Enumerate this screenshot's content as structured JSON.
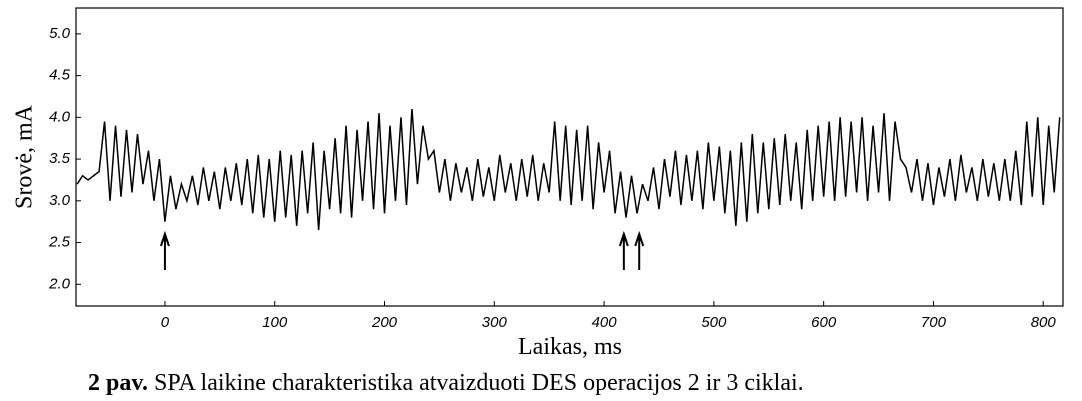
{
  "chart_data": {
    "type": "line",
    "y_label": "Srovė, mA",
    "x_label": "Laikas, ms",
    "caption_label": "2 pav.",
    "caption_text": "SPA laikine charakteristika atvaizduoti DES operacijos 2 ir 3 ciklai.",
    "color": "#000000",
    "xlim": [
      -81,
      818
    ],
    "ylim": [
      1.74,
      5.31
    ],
    "xticks": [
      0,
      100,
      200,
      300,
      400,
      500,
      600,
      700,
      800
    ],
    "yticks": [
      {
        "value": 2,
        "label": "2.0"
      },
      2.5,
      {
        "value": 3,
        "label": "3.0"
      },
      3.5,
      {
        "value": 4,
        "label": "4.0"
      },
      4.5,
      {
        "value": 5,
        "label": "5.0"
      }
    ],
    "markers": [
      0,
      418,
      432
    ],
    "x": [
      -80,
      -75,
      -70,
      -65,
      -60,
      -55,
      -50,
      -45,
      -40,
      -35,
      -30,
      -25,
      -20,
      -15,
      -10,
      -5,
      0,
      5,
      10,
      15,
      20,
      25,
      30,
      35,
      40,
      45,
      50,
      55,
      60,
      65,
      70,
      75,
      80,
      85,
      90,
      95,
      100,
      105,
      110,
      115,
      120,
      125,
      130,
      135,
      140,
      145,
      150,
      155,
      160,
      165,
      170,
      175,
      180,
      185,
      190,
      195,
      200,
      205,
      210,
      215,
      220,
      225,
      230,
      235,
      240,
      245,
      250,
      255,
      260,
      265,
      270,
      275,
      280,
      285,
      290,
      295,
      300,
      305,
      310,
      315,
      320,
      325,
      330,
      335,
      340,
      345,
      350,
      355,
      360,
      365,
      370,
      375,
      380,
      385,
      390,
      395,
      400,
      405,
      410,
      415,
      420,
      425,
      430,
      435,
      440,
      445,
      450,
      455,
      460,
      465,
      470,
      475,
      480,
      485,
      490,
      495,
      500,
      505,
      510,
      515,
      520,
      525,
      530,
      535,
      540,
      545,
      550,
      555,
      560,
      565,
      570,
      575,
      580,
      585,
      590,
      595,
      600,
      605,
      610,
      615,
      620,
      625,
      630,
      635,
      640,
      645,
      650,
      655,
      660,
      665,
      670,
      675,
      680,
      685,
      690,
      695,
      700,
      705,
      710,
      715,
      720,
      725,
      730,
      735,
      740,
      745,
      750,
      755,
      760,
      765,
      770,
      775,
      780,
      785,
      790,
      795,
      800,
      805,
      810,
      815
    ],
    "values": [
      3.2,
      3.3,
      3.25,
      3.3,
      3.35,
      3.95,
      3.0,
      3.9,
      3.05,
      3.85,
      3.1,
      3.8,
      3.2,
      3.6,
      3.0,
      3.5,
      2.75,
      3.3,
      2.9,
      3.2,
      3.0,
      3.3,
      2.95,
      3.4,
      3.0,
      3.35,
      2.9,
      3.4,
      3.0,
      3.45,
      2.95,
      3.5,
      2.85,
      3.55,
      2.8,
      3.5,
      2.75,
      3.6,
      2.8,
      3.55,
      2.7,
      3.6,
      2.85,
      3.7,
      2.65,
      3.6,
      2.9,
      3.75,
      2.85,
      3.9,
      2.8,
      3.85,
      3.0,
      3.95,
      2.9,
      4.05,
      2.85,
      3.9,
      3.0,
      4.0,
      2.95,
      4.1,
      3.2,
      3.9,
      3.5,
      3.6,
      3.1,
      3.5,
      3.0,
      3.45,
      3.1,
      3.4,
      3.0,
      3.5,
      3.05,
      3.4,
      3.0,
      3.55,
      3.1,
      3.45,
      3.0,
      3.5,
      3.05,
      3.55,
      3.0,
      3.45,
      3.1,
      3.95,
      3.0,
      3.9,
      2.95,
      3.85,
      3.0,
      3.9,
      2.9,
      3.7,
      3.1,
      3.6,
      2.85,
      3.35,
      2.8,
      3.3,
      2.85,
      3.2,
      3.0,
      3.4,
      2.9,
      3.5,
      3.05,
      3.6,
      2.95,
      3.55,
      3.0,
      3.6,
      2.9,
      3.7,
      3.0,
      3.65,
      2.85,
      3.6,
      2.7,
      3.7,
      2.75,
      3.8,
      2.85,
      3.7,
      2.9,
      3.75,
      2.95,
      3.8,
      3.0,
      3.7,
      2.9,
      3.85,
      3.0,
      3.9,
      3.05,
      3.95,
      3.0,
      4.0,
      3.05,
      3.95,
      3.1,
      4.0,
      3.0,
      3.9,
      3.1,
      4.05,
      3.0,
      3.95,
      3.5,
      3.4,
      3.1,
      3.5,
      3.0,
      3.45,
      2.95,
      3.4,
      3.05,
      3.5,
      3.0,
      3.55,
      3.1,
      3.4,
      3.0,
      3.5,
      3.05,
      3.45,
      3.0,
      3.5,
      3.0,
      3.6,
      2.95,
      3.95,
      3.05,
      4.0,
      2.95,
      3.9,
      3.1,
      4.0
    ]
  }
}
